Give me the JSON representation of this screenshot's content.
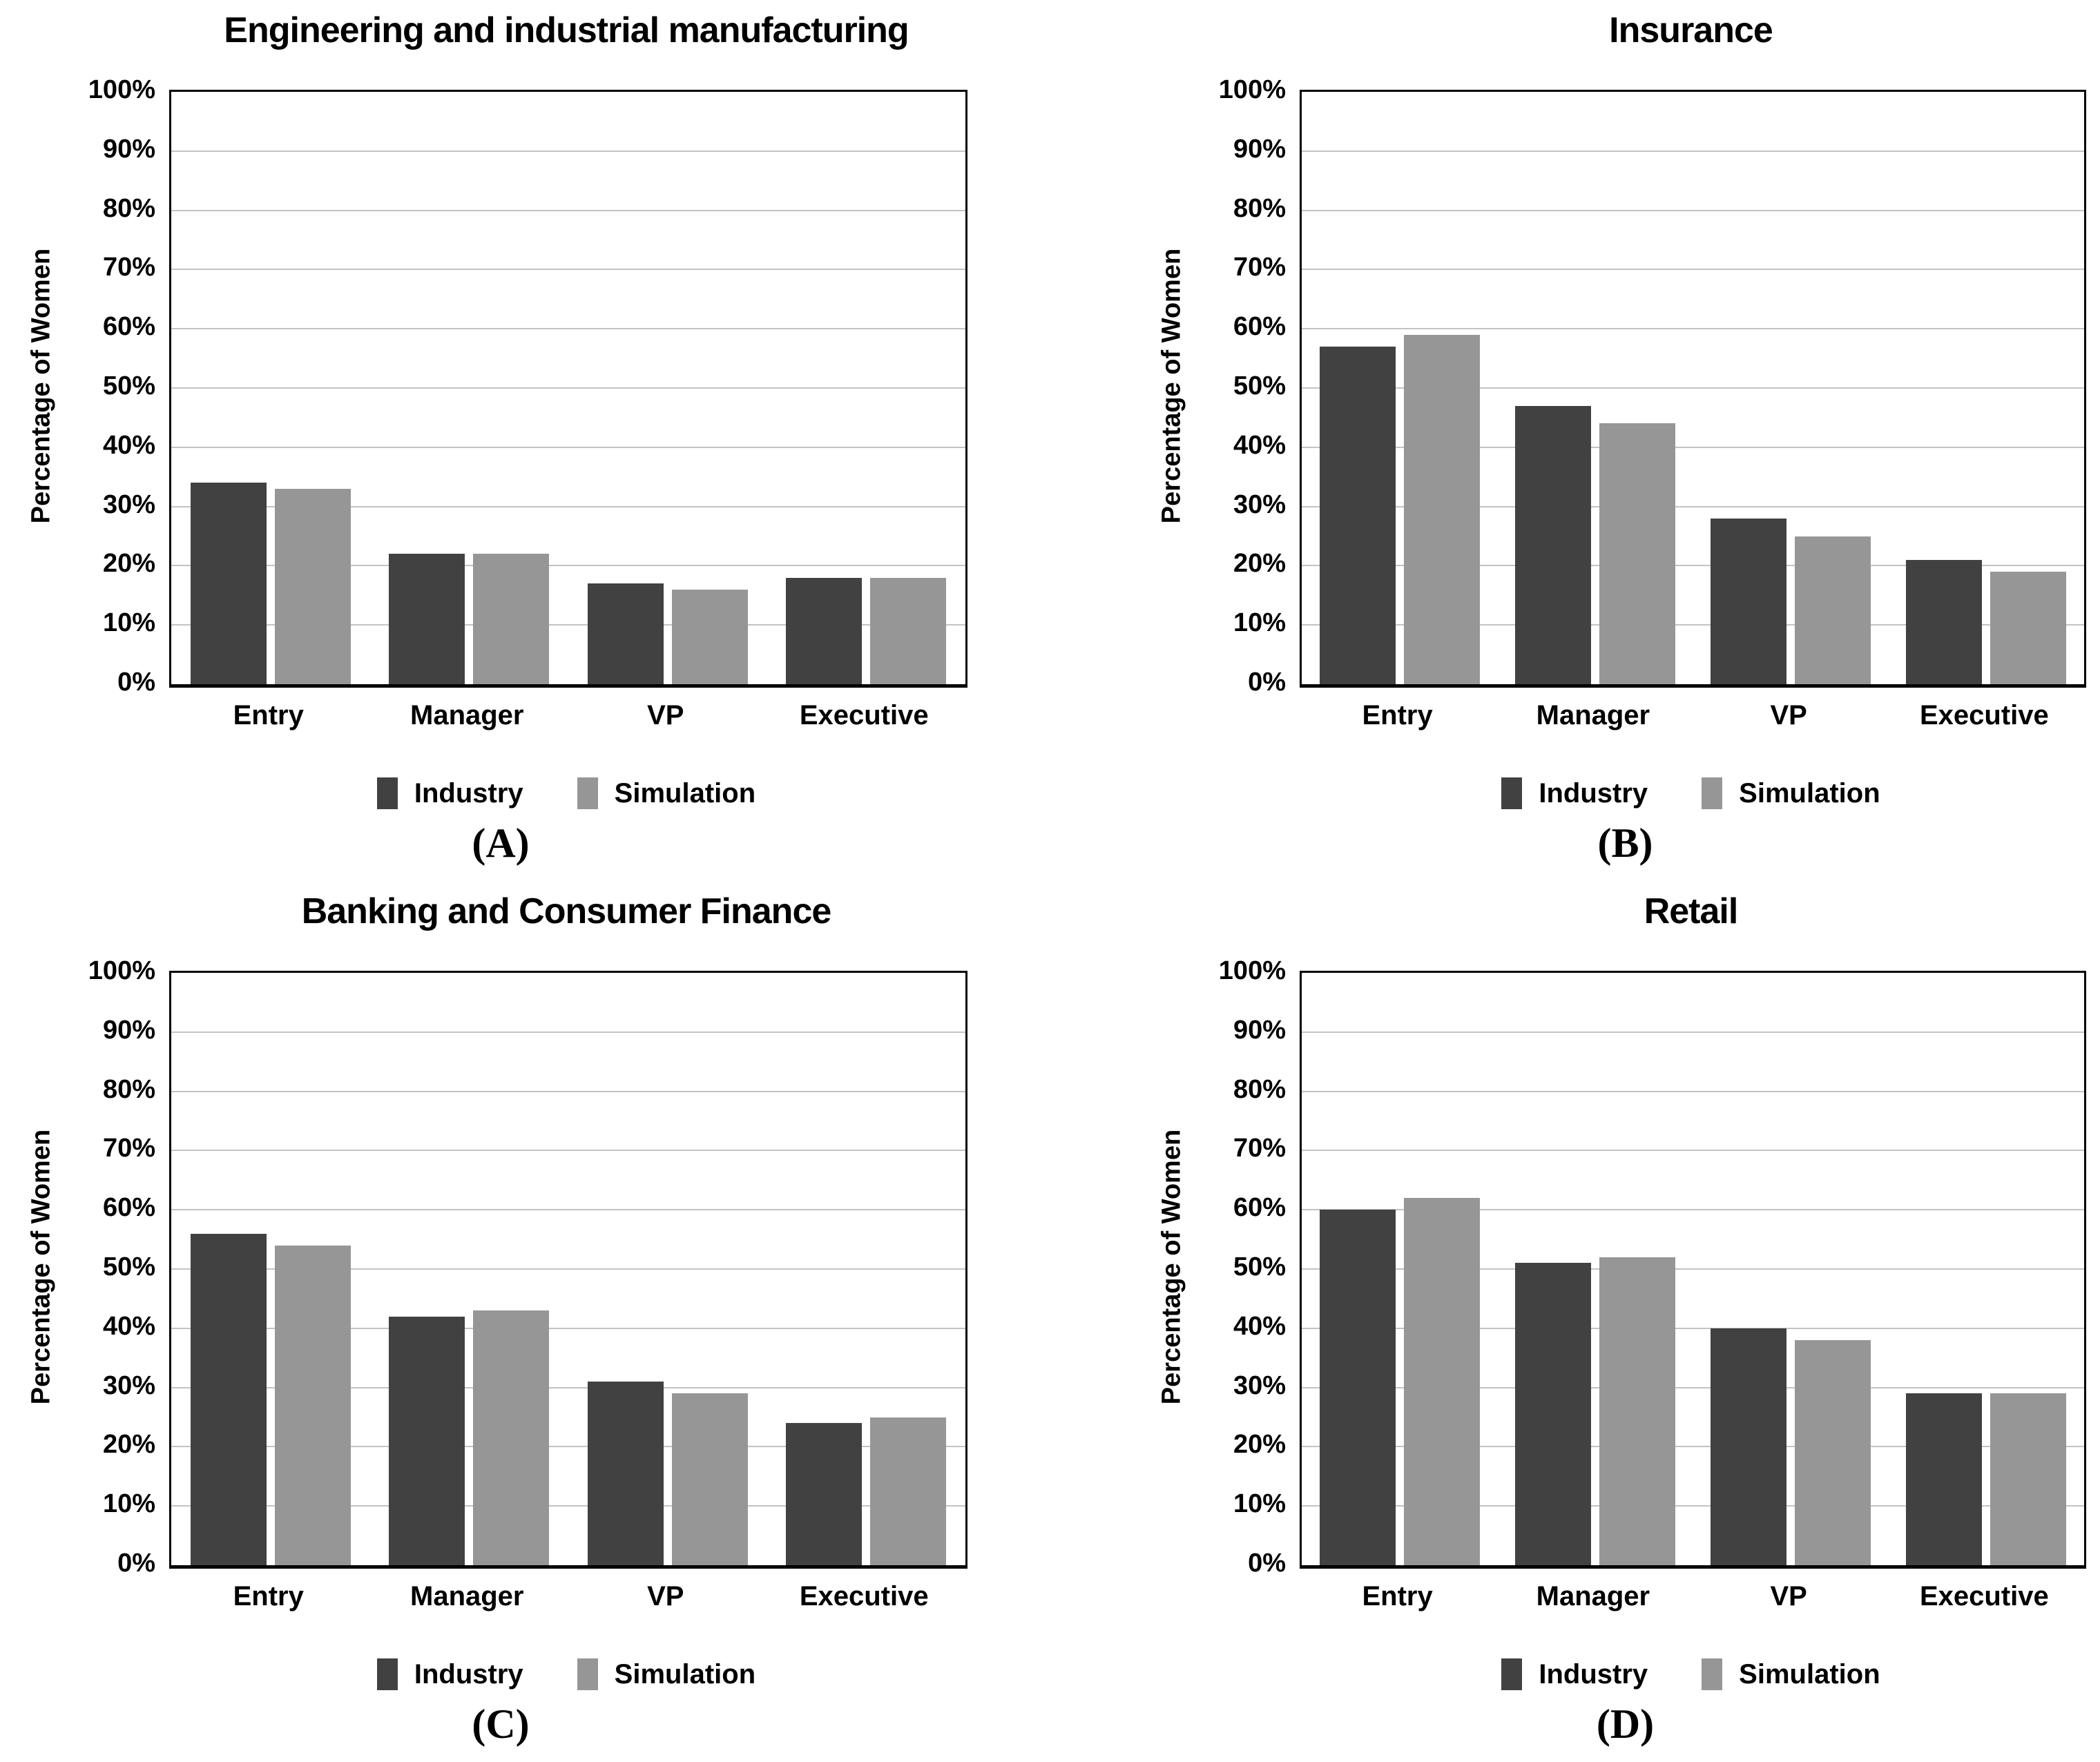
{
  "figure": {
    "y_axis_label": "Percentage of Women",
    "y_ticks": [
      "100%",
      "90%",
      "80%",
      "70%",
      "60%",
      "50%",
      "40%",
      "30%",
      "20%",
      "10%",
      "0%"
    ],
    "categories": [
      "Entry",
      "Manager",
      "VP",
      "Executive"
    ],
    "legend": [
      {
        "label": "Industry",
        "color": "#414141"
      },
      {
        "label": "Simulation",
        "color": "#969696"
      }
    ],
    "colors": {
      "industry_bar": "#414141",
      "simulation_bar": "#969696",
      "gridline": "#c3c3c3",
      "axis": "#000000",
      "background": "#ffffff"
    }
  },
  "chart_data": [
    {
      "type": "bar",
      "title": "Engineering and industrial manufacturing",
      "panel_label": "(A)",
      "categories": [
        "Entry",
        "Manager",
        "VP",
        "Executive"
      ],
      "ylabel": "Percentage of Women",
      "ylim": [
        0,
        100
      ],
      "grid": true,
      "legend_position": "bottom",
      "series": [
        {
          "name": "Industry",
          "values": [
            34,
            22,
            17,
            18
          ]
        },
        {
          "name": "Simulation",
          "values": [
            33,
            22,
            16,
            18
          ]
        }
      ]
    },
    {
      "type": "bar",
      "title": "Insurance",
      "panel_label": "(B)",
      "categories": [
        "Entry",
        "Manager",
        "VP",
        "Executive"
      ],
      "ylabel": "Percentage of Women",
      "ylim": [
        0,
        100
      ],
      "grid": true,
      "legend_position": "bottom",
      "series": [
        {
          "name": "Industry",
          "values": [
            57,
            47,
            28,
            21
          ]
        },
        {
          "name": "Simulation",
          "values": [
            59,
            44,
            25,
            19
          ]
        }
      ]
    },
    {
      "type": "bar",
      "title": "Banking and Consumer Finance",
      "panel_label": "(C)",
      "categories": [
        "Entry",
        "Manager",
        "VP",
        "Executive"
      ],
      "ylabel": "Percentage of Women",
      "ylim": [
        0,
        100
      ],
      "grid": true,
      "legend_position": "bottom",
      "series": [
        {
          "name": "Industry",
          "values": [
            56,
            42,
            31,
            24
          ]
        },
        {
          "name": "Simulation",
          "values": [
            54,
            43,
            29,
            25
          ]
        }
      ]
    },
    {
      "type": "bar",
      "title": "Retail",
      "panel_label": "(D)",
      "categories": [
        "Entry",
        "Manager",
        "VP",
        "Executive"
      ],
      "ylabel": "Percentage of Women",
      "ylim": [
        0,
        100
      ],
      "grid": true,
      "legend_position": "bottom",
      "series": [
        {
          "name": "Industry",
          "values": [
            60,
            51,
            40,
            29
          ]
        },
        {
          "name": "Simulation",
          "values": [
            62,
            52,
            38,
            29
          ]
        }
      ]
    }
  ]
}
